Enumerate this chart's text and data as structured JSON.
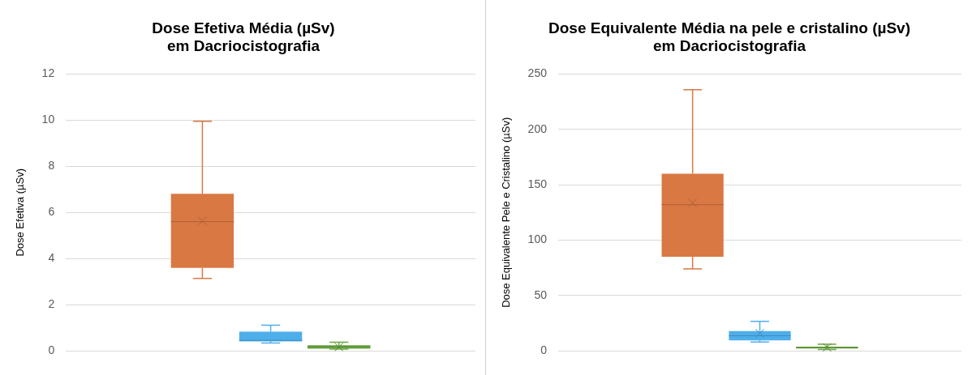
{
  "chart_data": [
    {
      "type": "box",
      "title": "Dose Efetiva Média (µSv)\nem Dacriocistografia",
      "ylabel": "Dose Efetiva (µSv)",
      "categories": [
        null
      ],
      "ylim": [
        0,
        12
      ],
      "yticks": [
        0,
        2,
        4,
        6,
        8,
        10,
        12
      ],
      "grid": "y",
      "tick_labels": "y",
      "legend": false,
      "series": [
        {
          "color": "#d97843",
          "boxes": [
            {
              "low": 3.14,
              "q1": 3.59,
              "median": 5.6,
              "q3": 6.81,
              "high": 9.96,
              "mean": 5.63
            }
          ]
        },
        {
          "color": "#4eaeea",
          "boxes": [
            {
              "low": 0.33,
              "q1": 0.4,
              "median": 0.45,
              "q3": 0.83,
              "high": 1.11
            }
          ]
        },
        {
          "color": "#6aa842",
          "boxes": [
            {
              "low": 0.07,
              "q1": 0.09,
              "median": 0.17,
              "q3": 0.24,
              "high": 0.37,
              "mean": 0.16
            }
          ]
        }
      ]
    },
    {
      "type": "box",
      "title": "Dose Equivalente Média na pele e cristalino (µSv)\nem Dacriocistografia",
      "ylabel": "Dose Equivalente Pele e Cristalino (µSv)",
      "categories": [
        null
      ],
      "ylim": [
        0,
        250
      ],
      "yticks": [
        0,
        50,
        100,
        150,
        200,
        250
      ],
      "grid": "y",
      "tick_labels": "y",
      "legend": false,
      "series": [
        {
          "color": "#d97843",
          "boxes": [
            {
              "low": 74,
              "q1": 85,
              "median": 132,
              "q3": 160,
              "high": 236,
              "mean": 133.5
            }
          ]
        },
        {
          "color": "#4eaeea",
          "boxes": [
            {
              "low": 7.9,
              "q1": 9.3,
              "median": 13.5,
              "q3": 17.8,
              "high": 26.5,
              "mean": 15.8
            }
          ]
        },
        {
          "color": "#6aa842",
          "boxes": [
            {
              "low": 1.1,
              "q1": 2,
              "median": 2.8,
              "q3": 3.7,
              "high": 5.9,
              "mean": 3
            }
          ]
        }
      ]
    }
  ]
}
